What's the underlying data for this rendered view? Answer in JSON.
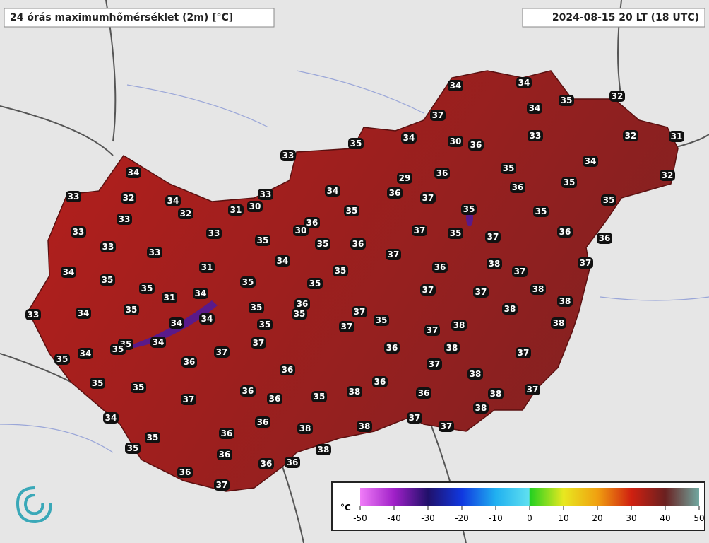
{
  "header": {
    "title": "24 órás maximumhőmérséklet (2m) [°C]",
    "valid_time": "2024-08-15 20 LT (18 UTC)"
  },
  "stations": {
    "values": [
      34,
      34,
      35,
      32,
      34,
      37,
      32,
      31,
      33,
      34,
      30,
      36,
      35,
      33,
      34,
      35,
      32,
      34,
      36,
      29,
      35,
      36,
      34,
      36,
      37,
      33,
      32,
      34,
      33,
      30,
      31,
      32,
      35,
      35,
      35,
      35,
      33,
      36,
      30,
      37,
      35,
      33,
      33,
      35,
      35,
      36,
      37,
      36,
      36,
      33,
      33,
      37,
      34,
      31,
      34,
      35,
      36,
      38,
      37,
      37,
      35,
      35,
      35,
      35,
      34,
      31,
      37,
      37,
      38,
      36,
      35,
      35,
      37,
      38,
      38,
      33,
      34,
      35,
      34,
      34,
      35,
      37,
      35,
      38,
      37,
      38,
      35,
      35,
      34,
      37,
      36,
      38,
      34,
      35,
      37,
      37,
      36,
      36,
      37,
      38,
      36,
      35,
      35,
      36,
      36,
      35,
      38,
      36,
      38,
      37,
      37,
      38,
      34,
      36,
      37,
      38,
      38,
      37,
      35,
      36,
      35,
      36,
      38,
      36,
      36,
      36,
      37
    ]
  },
  "colorbar": {
    "unit": "°C",
    "xlim": [
      -50,
      50
    ],
    "xticks": [
      -50,
      -40,
      -30,
      -20,
      -10,
      0,
      10,
      20,
      30,
      40,
      50
    ]
  }
}
